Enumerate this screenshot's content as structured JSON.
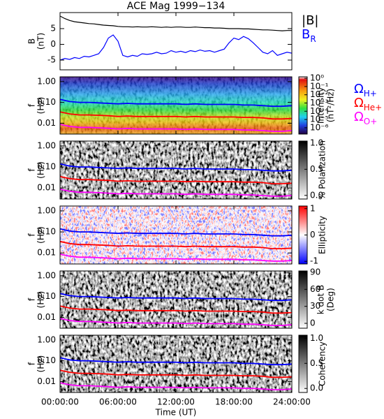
{
  "title": "ACE Mag 1999−134",
  "x_axis": {
    "label": "Time (UT)",
    "xlim": [
      0,
      24
    ],
    "xticks": [
      {
        "value": 0,
        "label": "00:00:00"
      },
      {
        "value": 6,
        "label": "06:00:00"
      },
      {
        "value": 12,
        "label": "12:00:00"
      },
      {
        "value": 18,
        "label": "18:00:00"
      },
      {
        "value": 24,
        "label": "24:00:00"
      }
    ]
  },
  "gyrofrequencies": {
    "x": [
      0,
      1,
      2,
      3,
      4,
      5,
      6,
      7,
      8,
      9,
      10,
      11,
      12,
      13,
      14,
      15,
      16,
      17,
      18,
      19,
      20,
      21,
      22,
      23,
      24
    ],
    "series": [
      {
        "name": "Ω",
        "subscript": "H+",
        "color": "#0000ff",
        "values": [
          0.14,
          0.11,
          0.1,
          0.1,
          0.095,
          0.09,
          0.085,
          0.09,
          0.085,
          0.085,
          0.085,
          0.085,
          0.085,
          0.08,
          0.085,
          0.08,
          0.08,
          0.08,
          0.08,
          0.075,
          0.075,
          0.07,
          0.065,
          0.065,
          0.07
        ]
      },
      {
        "name": "Ω",
        "subscript": "He+",
        "color": "#ff0000",
        "values": [
          0.035,
          0.028,
          0.025,
          0.025,
          0.024,
          0.023,
          0.021,
          0.022,
          0.021,
          0.021,
          0.021,
          0.021,
          0.021,
          0.02,
          0.021,
          0.02,
          0.02,
          0.02,
          0.02,
          0.019,
          0.019,
          0.018,
          0.016,
          0.016,
          0.017
        ]
      },
      {
        "name": "Ω",
        "subscript": "O+",
        "color": "#ff00ff",
        "values": [
          0.0088,
          0.007,
          0.0063,
          0.0063,
          0.006,
          0.0057,
          0.0053,
          0.0056,
          0.0053,
          0.0053,
          0.0053,
          0.0053,
          0.0053,
          0.005,
          0.0053,
          0.005,
          0.005,
          0.005,
          0.005,
          0.0047,
          0.0047,
          0.0044,
          0.0041,
          0.0041,
          0.0044
        ]
      }
    ]
  },
  "chart_data": [
    {
      "type": "line",
      "ylabel": [
        "B",
        "(nT)"
      ],
      "x": [
        0,
        0.5,
        1,
        1.5,
        2,
        2.5,
        3,
        3.5,
        4,
        4.5,
        5,
        5.5,
        6,
        6.5,
        7,
        7.5,
        8,
        8.5,
        9,
        9.5,
        10,
        10.5,
        11,
        11.5,
        12,
        12.5,
        13,
        13.5,
        14,
        14.5,
        15,
        15.5,
        16,
        16.5,
        17,
        17.5,
        18,
        18.5,
        19,
        19.5,
        20,
        20.5,
        21,
        21.5,
        22,
        22.5,
        23,
        23.5,
        24
      ],
      "ylim": [
        -8.1,
        10.1
      ],
      "yticks": [
        -5,
        0,
        5
      ],
      "series": [
        {
          "name": "|B|",
          "color": "#000000",
          "values": [
            9,
            8.2,
            7.6,
            7.2,
            7.0,
            6.8,
            6.6,
            6.5,
            6.3,
            6.1,
            6.0,
            5.9,
            5.7,
            5.6,
            5.6,
            5.5,
            5.6,
            5.5,
            5.5,
            5.6,
            5.5,
            5.4,
            5.5,
            5.4,
            5.5,
            5.5,
            5.4,
            5.4,
            5.5,
            5.4,
            5.3,
            5.3,
            5.2,
            5.2,
            5.1,
            5.0,
            5.0,
            5.0,
            4.9,
            4.9,
            4.8,
            4.7,
            4.6,
            4.6,
            4.5,
            4.4,
            4.3,
            4.4,
            4.4
          ]
        },
        {
          "name": "B",
          "subscript": "R",
          "color": "#0000ff",
          "values": [
            -5,
            -4.5,
            -4.8,
            -4.2,
            -4.5,
            -3.8,
            -4,
            -3.5,
            -3,
            -1,
            2,
            3,
            1,
            -3.5,
            -4,
            -3.5,
            -3.8,
            -3,
            -3.2,
            -3,
            -2.5,
            -3,
            -2.8,
            -2,
            -2.5,
            -2.2,
            -2.6,
            -2,
            -2.3,
            -1.8,
            -2.2,
            -2,
            -2.5,
            -2,
            -1.5,
            0.5,
            2,
            1.5,
            2.5,
            1.8,
            0.5,
            -1,
            -2.5,
            -3,
            -2,
            -3.5,
            -3,
            -2.5,
            -2.8
          ]
        }
      ]
    },
    {
      "type": "spectrogram",
      "ylabel": [
        "f",
        "(Hz)"
      ],
      "ylog": true,
      "ylim": [
        0.003,
        1.7
      ],
      "yticks": [
        {
          "value": 1,
          "label": "1.00"
        },
        {
          "value": 0.1,
          "label": "0.10"
        },
        {
          "value": 0.01,
          "label": "0.01"
        }
      ],
      "colormap": "rainbow",
      "gyro_legend": true,
      "colorbar": {
        "label": [
          "Intensity",
          "(nT²/Hz)"
        ],
        "log": true,
        "lim": [
          1.7e-07,
          1.5
        ],
        "ticks": [
          {
            "value": 1,
            "label": "10⁰"
          },
          {
            "value": 0.1,
            "label": "10⁻¹"
          },
          {
            "value": 0.01,
            "label": "10⁻²"
          },
          {
            "value": 0.001,
            "label": "10⁻³"
          },
          {
            "value": 0.0001,
            "label": "10⁻⁴"
          },
          {
            "value": 1e-05,
            "label": "10⁻⁵"
          },
          {
            "value": 1e-06,
            "label": "10⁻⁶"
          }
        ]
      }
    },
    {
      "type": "spectrogram",
      "ylabel": [
        "f",
        "(Hz)"
      ],
      "ylog": true,
      "ylim": [
        0.003,
        1.7
      ],
      "yticks": [
        {
          "value": 1,
          "label": "1.00"
        },
        {
          "value": 0.1,
          "label": "0.10"
        },
        {
          "value": 0.01,
          "label": "0.01"
        }
      ],
      "colormap": "gray",
      "colorbar": {
        "label": [
          "% Polarization"
        ],
        "lim": [
          -0.07,
          1.04
        ],
        "ticks": [
          {
            "value": 0,
            "label": "0.0"
          },
          0.5,
          {
            "value": 1,
            "label": "1.0"
          }
        ]
      }
    },
    {
      "type": "spectrogram",
      "ylabel": [
        "f",
        "(Hz)"
      ],
      "ylog": true,
      "ylim": [
        0.003,
        1.7
      ],
      "yticks": [
        {
          "value": 1,
          "label": "1.00"
        },
        {
          "value": 0.1,
          "label": "0.10"
        },
        {
          "value": 0.01,
          "label": "0.01"
        }
      ],
      "colormap": "bwr",
      "colorbar": {
        "label": [
          "Ellipticity"
        ],
        "lim": [
          -1.1,
          1.1
        ],
        "ticks": [
          -1,
          0,
          1
        ]
      }
    },
    {
      "type": "spectrogram",
      "ylabel": [
        "f",
        "(Hz)"
      ],
      "ylog": true,
      "ylim": [
        0.003,
        1.7
      ],
      "yticks": [
        {
          "value": 1,
          "label": "1.00"
        },
        {
          "value": 0.1,
          "label": "0.10"
        },
        {
          "value": 0.01,
          "label": "0.01"
        }
      ],
      "colormap": "gray",
      "colorbar": {
        "label": [
          "k dot B",
          "(Deg)"
        ],
        "lim": [
          -8.6,
          92.4
        ],
        "ticks": [
          0,
          30,
          60,
          90
        ]
      }
    },
    {
      "type": "spectrogram",
      "ylabel": [
        "f",
        "(Hz)"
      ],
      "ylog": true,
      "ylim": [
        0.003,
        1.7
      ],
      "yticks": [
        {
          "value": 1,
          "label": "1.00"
        },
        {
          "value": 0.1,
          "label": "0.10"
        },
        {
          "value": 0.01,
          "label": "0.01"
        }
      ],
      "colormap": "gray",
      "colorbar": {
        "label": [
          "Coherency"
        ],
        "lim": [
          -0.08,
          1.06
        ],
        "ticks": [
          {
            "value": 0,
            "label": "0.0"
          },
          0.5,
          {
            "value": 1,
            "label": "1.0"
          }
        ]
      }
    }
  ]
}
